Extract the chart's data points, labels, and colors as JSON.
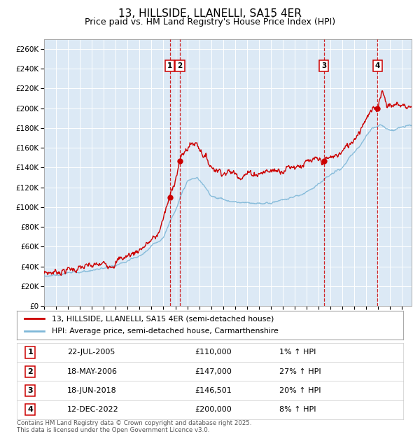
{
  "title": "13, HILLSIDE, LLANELLI, SA15 4ER",
  "subtitle": "Price paid vs. HM Land Registry's House Price Index (HPI)",
  "title_fontsize": 11,
  "subtitle_fontsize": 9,
  "ylim": [
    0,
    270000
  ],
  "xlim_start": 1995.0,
  "xlim_end": 2025.8,
  "background_color": "#ffffff",
  "plot_bg_color": "#dce9f5",
  "grid_color": "#ffffff",
  "legend_label_red": "13, HILLSIDE, LLANELLI, SA15 4ER (semi-detached house)",
  "legend_label_blue": "HPI: Average price, semi-detached house, Carmarthenshire",
  "red_color": "#cc0000",
  "blue_color": "#7fb8d8",
  "footer_text": "Contains HM Land Registry data © Crown copyright and database right 2025.\nThis data is licensed under the Open Government Licence v3.0.",
  "sale_markers": [
    {
      "num": 1,
      "date": "22-JUL-2005",
      "price": "£110,000",
      "hpi": "1% ↑ HPI",
      "year": 2005.55,
      "price_val": 110000
    },
    {
      "num": 2,
      "date": "18-MAY-2006",
      "price": "£147,000",
      "hpi": "27% ↑ HPI",
      "year": 2006.38,
      "price_val": 147000
    },
    {
      "num": 3,
      "date": "18-JUN-2018",
      "price": "£146,501",
      "hpi": "20% ↑ HPI",
      "year": 2018.46,
      "price_val": 146501
    },
    {
      "num": 4,
      "date": "12-DEC-2022",
      "price": "£200,000",
      "hpi": "8% ↑ HPI",
      "year": 2022.95,
      "price_val": 200000
    }
  ],
  "ytick_values": [
    0,
    20000,
    40000,
    60000,
    80000,
    100000,
    120000,
    140000,
    160000,
    180000,
    200000,
    220000,
    240000,
    260000
  ],
  "ytick_labels": [
    "£0",
    "£20K",
    "£40K",
    "£60K",
    "£80K",
    "£100K",
    "£120K",
    "£140K",
    "£160K",
    "£180K",
    "£200K",
    "£220K",
    "£240K",
    "£260K"
  ]
}
